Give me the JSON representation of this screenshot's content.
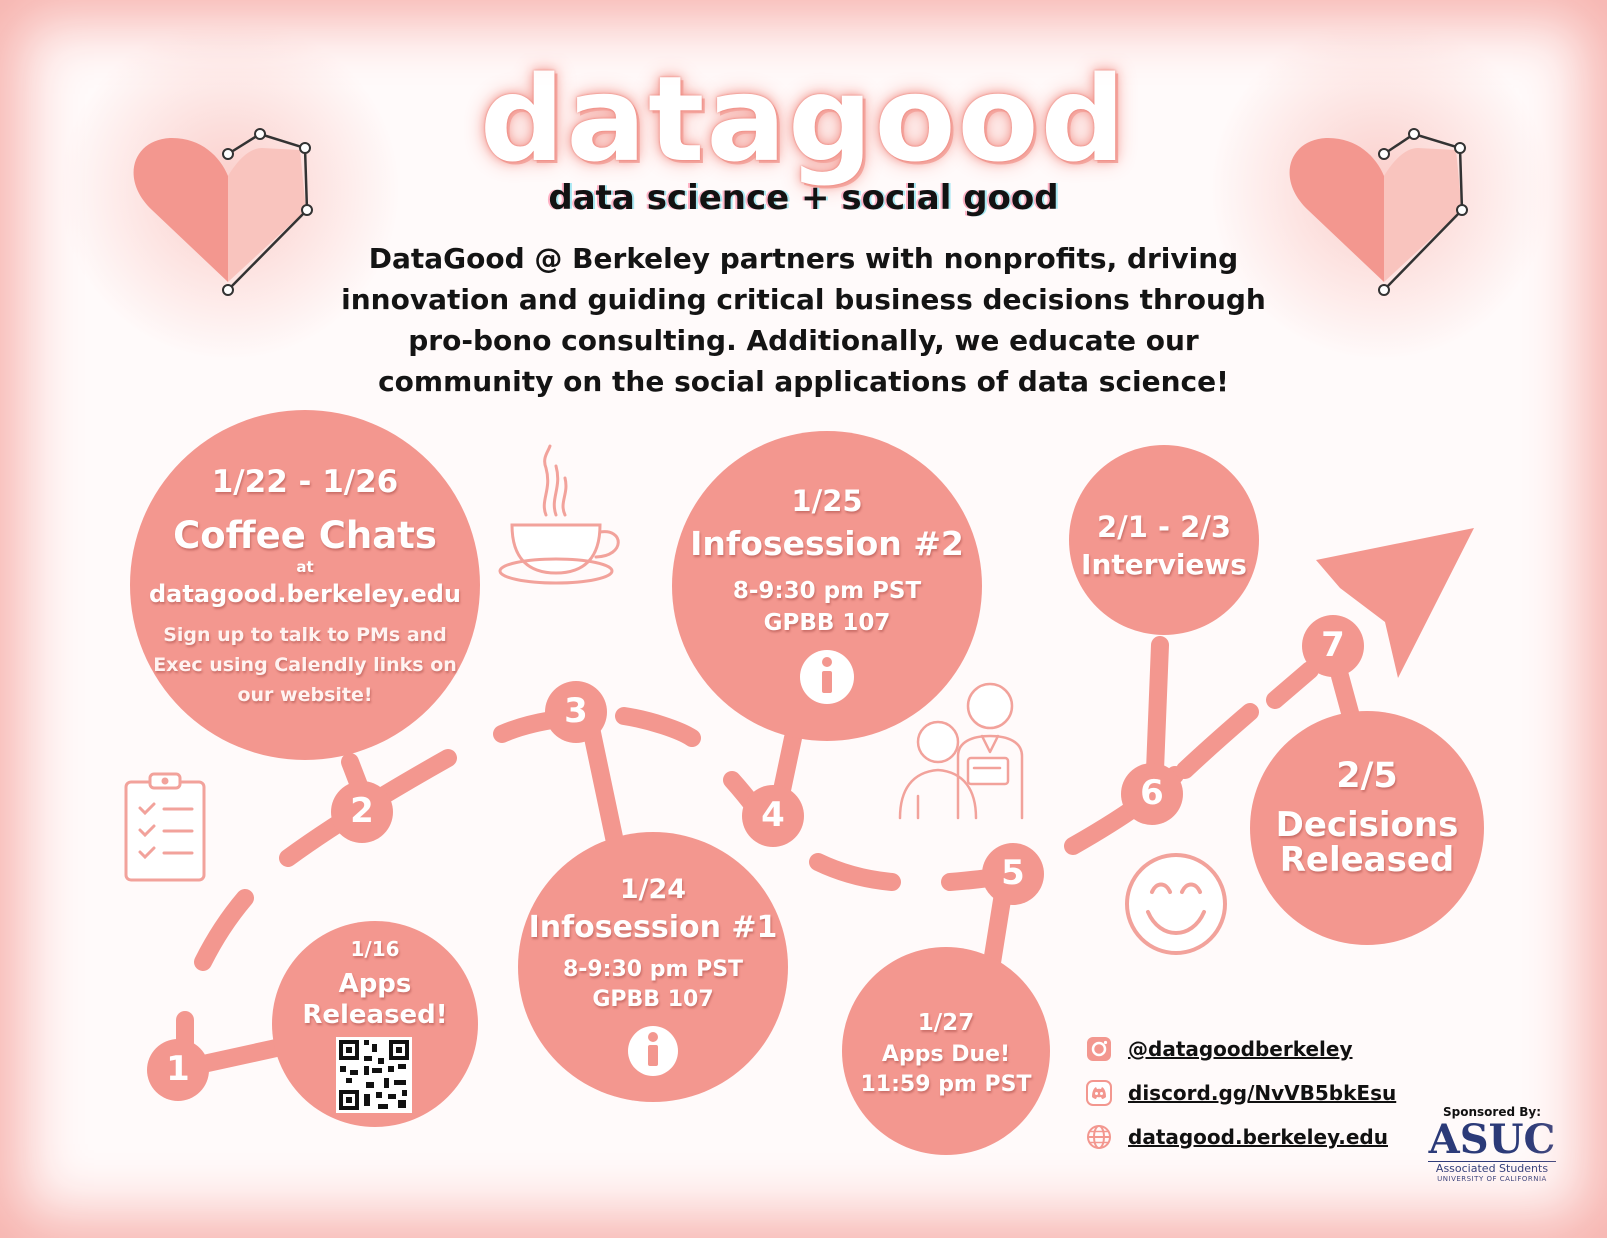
{
  "colors": {
    "accent": "#f3978f",
    "line": "#f3978f",
    "text": "#141414",
    "icon_outline": "#f2a29b",
    "asuc": "#2b3a78"
  },
  "header": {
    "title": "datagood",
    "tagline": "data science + social good",
    "intro": "DataGood @ Berkeley partners with nonprofits, driving innovation and guiding critical business decisions through pro-bono consulting. Additionally, we educate our community on the social applications of data science!"
  },
  "steps": [
    {
      "number": "1"
    },
    {
      "number": "2"
    },
    {
      "number": "3"
    },
    {
      "number": "4"
    },
    {
      "number": "5"
    },
    {
      "number": "6"
    },
    {
      "number": "7"
    }
  ],
  "events": {
    "coffee_chats": {
      "date": "1/22 - 1/26",
      "title": "Coffee Chats",
      "at": "at",
      "site": "datagood.berkeley.edu",
      "note": "Sign up to talk to PMs and Exec using Calendly links on our website!"
    },
    "apps_released": {
      "date": "1/16",
      "title_line1": "Apps",
      "title_line2": "Released!"
    },
    "infosession_1": {
      "date": "1/24",
      "title": "Infosession #1",
      "time": "8-9:30 pm PST",
      "location": "GPBB 107"
    },
    "infosession_2": {
      "date": "1/25",
      "title": "Infosession #2",
      "time": "8-9:30 pm PST",
      "location": "GPBB 107"
    },
    "apps_due": {
      "date": "1/27",
      "title": "Apps Due!",
      "time": "11:59 pm PST"
    },
    "interviews": {
      "date": "2/1 - 2/3",
      "title": "Interviews"
    },
    "decisions": {
      "date": "2/5",
      "title_line1": "Decisions",
      "title_line2": "Released"
    }
  },
  "icons": [
    "heart-circuit-icon",
    "coffee-cup-icon",
    "clipboard-checklist-icon",
    "interview-people-icon",
    "smiley-icon",
    "info-icon",
    "qr-code-icon",
    "arrow-icon",
    "instagram-icon",
    "discord-icon",
    "globe-icon"
  ],
  "contacts": [
    {
      "icon": "instagram-icon",
      "label": "@datagoodberkeley"
    },
    {
      "icon": "discord-icon",
      "label": "discord.gg/NvVB5bkEsu"
    },
    {
      "icon": "globe-icon",
      "label": "datagood.berkeley.edu"
    }
  ],
  "sponsor": {
    "label": "Sponsored By:",
    "logo": "ASUC",
    "name": "Associated Students",
    "sub": "UNIVERSITY OF CALIFORNIA"
  }
}
